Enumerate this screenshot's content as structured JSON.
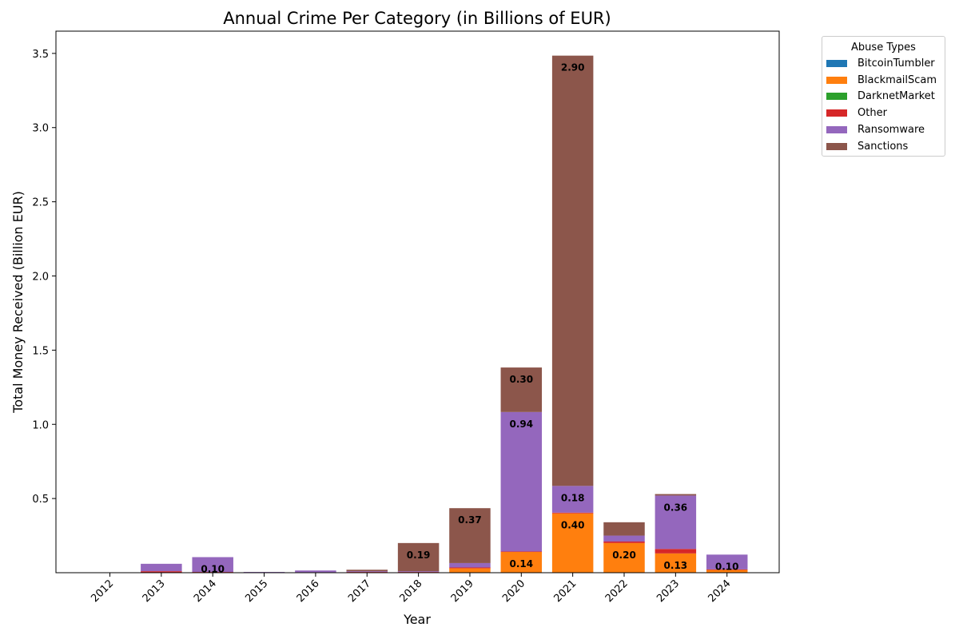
{
  "chart_data": {
    "type": "bar",
    "stacked": true,
    "title": "Annual Crime Per Category (in Billions of EUR)",
    "xlabel": "Year",
    "ylabel": "Total Money Received (Billion EUR)",
    "ylim": [
      0,
      3.65
    ],
    "yticks": [
      "0.5",
      "1.0",
      "1.5",
      "2.0",
      "2.5",
      "3.0",
      "3.5"
    ],
    "categories": [
      "2012",
      "2013",
      "2014",
      "2015",
      "2016",
      "2017",
      "2018",
      "2019",
      "2020",
      "2021",
      "2022",
      "2023",
      "2024"
    ],
    "grid": false,
    "legend": {
      "title": "Abuse Types",
      "placement": "outside-top-right"
    },
    "series": [
      {
        "name": "BitcoinTumbler",
        "color": "#1f77b4",
        "values": [
          0,
          0,
          0,
          0,
          0,
          0,
          0,
          0,
          0,
          0,
          0,
          0,
          0
        ]
      },
      {
        "name": "BlackmailScam",
        "color": "#ff7f0e",
        "values": [
          0,
          0,
          0,
          0,
          0,
          0,
          0,
          0.03,
          0.14,
          0.4,
          0.2,
          0.13,
          0.02
        ]
      },
      {
        "name": "DarknetMarket",
        "color": "#2ca02c",
        "values": [
          0,
          0,
          0,
          0,
          0,
          0,
          0,
          0,
          0,
          0,
          0,
          0,
          0
        ]
      },
      {
        "name": "Other",
        "color": "#d62728",
        "values": [
          0,
          0.01,
          0.005,
          0.002,
          0.003,
          0.005,
          0.005,
          0.005,
          0.003,
          0.005,
          0.01,
          0.03,
          0.002
        ]
      },
      {
        "name": "Ransomware",
        "color": "#9467bd",
        "values": [
          0,
          0.05,
          0.1,
          0.003,
          0.012,
          0.005,
          0.005,
          0.03,
          0.94,
          0.18,
          0.04,
          0.36,
          0.1
        ]
      },
      {
        "name": "Sanctions",
        "color": "#8c564b",
        "values": [
          0,
          0,
          0,
          0,
          0,
          0.01,
          0.19,
          0.37,
          0.3,
          2.9,
          0.09,
          0.01,
          0
        ]
      }
    ],
    "data_labels": [
      {
        "category": "2014",
        "series": "Ransomware",
        "text": "0.10"
      },
      {
        "category": "2018",
        "series": "Sanctions",
        "text": "0.19"
      },
      {
        "category": "2019",
        "series": "Sanctions",
        "text": "0.37"
      },
      {
        "category": "2020",
        "series": "BlackmailScam",
        "text": "0.14"
      },
      {
        "category": "2020",
        "series": "Ransomware",
        "text": "0.94"
      },
      {
        "category": "2020",
        "series": "Sanctions",
        "text": "0.30"
      },
      {
        "category": "2021",
        "series": "BlackmailScam",
        "text": "0.40"
      },
      {
        "category": "2021",
        "series": "Ransomware",
        "text": "0.18"
      },
      {
        "category": "2021",
        "series": "Sanctions",
        "text": "2.90"
      },
      {
        "category": "2022",
        "series": "BlackmailScam",
        "text": "0.20"
      },
      {
        "category": "2023",
        "series": "BlackmailScam",
        "text": "0.13"
      },
      {
        "category": "2023",
        "series": "Ransomware",
        "text": "0.36"
      },
      {
        "category": "2024",
        "series": "Ransomware",
        "text": "0.10"
      }
    ]
  }
}
